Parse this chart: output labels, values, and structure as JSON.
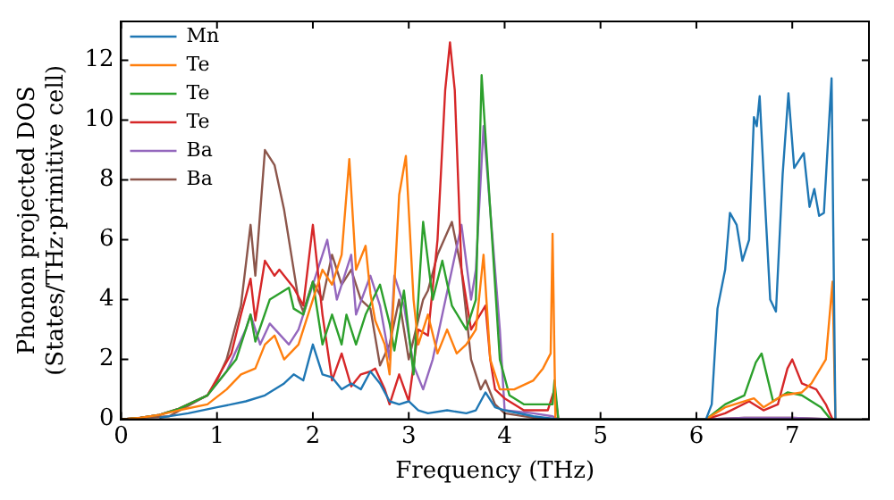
{
  "chart_data": {
    "type": "line",
    "xlabel": "Frequency (THz)",
    "ylabel": "Phonon projected DOS\n(States/THz·primitive cell)",
    "xlim": [
      0,
      7.8
    ],
    "ylim": [
      0,
      13.3
    ],
    "xticks": [
      0,
      1,
      2,
      3,
      4,
      5,
      6,
      7
    ],
    "yticks": [
      0,
      2,
      4,
      6,
      8,
      10,
      12
    ],
    "grid": false,
    "legend": "top left",
    "marker": "none",
    "line_style": "solid",
    "series": [
      {
        "name": "Mn",
        "color": "#1f77b4",
        "x": [
          0.4,
          0.7,
          1.0,
          1.3,
          1.5,
          1.7,
          1.8,
          1.9,
          2.0,
          2.1,
          2.2,
          2.3,
          2.4,
          2.5,
          2.6,
          2.7,
          2.8,
          2.9,
          3.0,
          3.1,
          3.2,
          3.4,
          3.6,
          3.7,
          3.8,
          3.9,
          4.0,
          4.3,
          4.56,
          6.1,
          6.16,
          6.22,
          6.3,
          6.35,
          6.42,
          6.48,
          6.55,
          6.6,
          6.63,
          6.66,
          6.72,
          6.77,
          6.83,
          6.9,
          6.96,
          7.02,
          7.12,
          7.18,
          7.23,
          7.28,
          7.33,
          7.41,
          7.45
        ],
        "values": [
          0.05,
          0.2,
          0.4,
          0.6,
          0.8,
          1.2,
          1.5,
          1.3,
          2.5,
          1.5,
          1.4,
          1.0,
          1.2,
          1.0,
          1.6,
          1.2,
          0.6,
          0.5,
          0.6,
          0.3,
          0.2,
          0.3,
          0.2,
          0.3,
          0.9,
          0.4,
          0.3,
          0.1,
          0,
          0,
          0.5,
          3.7,
          5.0,
          6.9,
          6.5,
          5.3,
          6.0,
          10.1,
          9.8,
          10.8,
          7.0,
          4.0,
          3.6,
          8.2,
          10.9,
          8.4,
          8.9,
          7.1,
          7.7,
          6.8,
          6.9,
          11.4,
          0
        ]
      },
      {
        "name": "Te",
        "color": "#ff7f0e",
        "x": [
          0,
          0.2,
          0.4,
          0.6,
          0.9,
          1.1,
          1.25,
          1.4,
          1.5,
          1.6,
          1.7,
          1.85,
          2.0,
          2.1,
          2.2,
          2.3,
          2.38,
          2.45,
          2.55,
          2.6,
          2.65,
          2.75,
          2.8,
          2.9,
          2.97,
          3.05,
          3.1,
          3.2,
          3.3,
          3.4,
          3.5,
          3.6,
          3.7,
          3.78,
          3.85,
          3.95,
          4.1,
          4.3,
          4.4,
          4.48,
          4.5,
          4.53,
          6.1,
          6.3,
          6.6,
          6.7,
          6.9,
          7.1,
          7.2,
          7.35,
          7.42,
          7.45
        ],
        "values": [
          0,
          0.05,
          0.15,
          0.3,
          0.5,
          1.0,
          1.5,
          1.7,
          2.5,
          2.8,
          2.0,
          2.5,
          4.0,
          5.0,
          4.5,
          5.5,
          8.7,
          5.0,
          5.8,
          4.2,
          3.3,
          2.5,
          1.5,
          7.5,
          8.8,
          4.0,
          2.5,
          3.5,
          2.2,
          3.0,
          2.2,
          2.5,
          3.0,
          5.5,
          2.0,
          1.0,
          1.0,
          1.3,
          1.7,
          2.2,
          6.2,
          0,
          0,
          0.4,
          0.7,
          0.4,
          0.8,
          0.9,
          1.2,
          2.0,
          4.6,
          0
        ]
      },
      {
        "name": "Te",
        "color": "#2ca02c",
        "x": [
          0,
          0.2,
          0.4,
          0.6,
          0.9,
          1.2,
          1.35,
          1.4,
          1.55,
          1.75,
          1.8,
          1.9,
          2.0,
          2.1,
          2.2,
          2.3,
          2.35,
          2.45,
          2.55,
          2.7,
          2.8,
          2.85,
          2.95,
          3.05,
          3.15,
          3.25,
          3.35,
          3.45,
          3.6,
          3.7,
          3.76,
          3.85,
          3.95,
          4.05,
          4.2,
          4.5,
          4.52,
          4.56,
          6.1,
          6.3,
          6.5,
          6.62,
          6.68,
          6.8,
          6.95,
          7.1,
          7.3,
          7.4
        ],
        "values": [
          0,
          0.05,
          0.15,
          0.35,
          0.8,
          2.0,
          3.5,
          2.6,
          4.0,
          4.4,
          3.7,
          3.5,
          4.6,
          2.5,
          3.5,
          2.5,
          3.5,
          2.5,
          3.5,
          4.5,
          3.2,
          2.3,
          4.3,
          1.5,
          6.6,
          4.0,
          5.3,
          3.8,
          3.0,
          4.0,
          11.5,
          7.0,
          2.0,
          0.8,
          0.5,
          0.5,
          1.3,
          0,
          0,
          0.5,
          0.8,
          1.9,
          2.2,
          0.6,
          0.9,
          0.8,
          0.4,
          0
        ]
      },
      {
        "name": "Te",
        "color": "#d62728",
        "x": [
          0,
          0.2,
          0.4,
          0.6,
          0.9,
          1.15,
          1.25,
          1.35,
          1.4,
          1.5,
          1.6,
          1.65,
          1.8,
          1.9,
          2.0,
          2.1,
          2.2,
          2.3,
          2.4,
          2.5,
          2.6,
          2.65,
          2.75,
          2.8,
          2.9,
          3.0,
          3.1,
          3.2,
          3.3,
          3.38,
          3.43,
          3.48,
          3.55,
          3.65,
          3.8,
          3.85,
          3.9,
          4.0,
          4.2,
          4.45,
          4.52,
          4.56,
          6.1,
          6.3,
          6.55,
          6.7,
          6.85,
          6.95,
          7.0,
          7.1,
          7.25,
          7.35,
          7.42
        ],
        "values": [
          0,
          0.05,
          0.15,
          0.35,
          0.8,
          2.2,
          3.5,
          4.7,
          3.3,
          5.3,
          4.8,
          5.0,
          4.4,
          3.8,
          6.5,
          3.5,
          1.3,
          2.2,
          1.1,
          1.5,
          1.6,
          1.7,
          1.0,
          0.5,
          1.5,
          0.6,
          3.0,
          2.8,
          6.0,
          11.0,
          12.6,
          11.0,
          5.0,
          3.0,
          3.8,
          2.0,
          1.0,
          0.7,
          0.3,
          0.3,
          1.0,
          0,
          0,
          0.2,
          0.6,
          0.3,
          0.5,
          1.7,
          2.0,
          1.2,
          1.0,
          0.5,
          0
        ]
      },
      {
        "name": "Ba",
        "color": "#9467bd",
        "x": [
          0,
          0.2,
          0.4,
          0.6,
          0.9,
          1.1,
          1.3,
          1.35,
          1.45,
          1.55,
          1.75,
          1.85,
          2.0,
          2.15,
          2.25,
          2.4,
          2.45,
          2.6,
          2.7,
          2.8,
          2.85,
          2.95,
          3.05,
          3.15,
          3.25,
          3.35,
          3.55,
          3.65,
          3.7,
          3.78,
          3.85,
          3.95,
          4.0,
          4.3,
          4.5,
          4.56,
          6.1,
          6.5,
          7.0,
          7.45
        ],
        "values": [
          0,
          0.05,
          0.15,
          0.35,
          0.8,
          1.6,
          3.0,
          3.5,
          2.5,
          3.2,
          2.5,
          3.0,
          4.5,
          6.0,
          4.0,
          5.5,
          3.5,
          4.8,
          3.8,
          2.0,
          4.8,
          3.8,
          1.8,
          1.0,
          2.0,
          3.5,
          6.5,
          4.0,
          5.0,
          9.8,
          7.0,
          3.0,
          0.3,
          0.2,
          0.1,
          0,
          0,
          0.05,
          0.05,
          0
        ]
      },
      {
        "name": "Ba",
        "color": "#8c564b",
        "x": [
          0,
          0.2,
          0.5,
          0.9,
          1.0,
          1.1,
          1.25,
          1.35,
          1.4,
          1.5,
          1.6,
          1.7,
          1.85,
          1.9,
          2.0,
          2.1,
          2.2,
          2.3,
          2.4,
          2.5,
          2.6,
          2.7,
          2.8,
          2.9,
          3.0,
          3.15,
          3.2,
          3.3,
          3.45,
          3.55,
          3.65,
          3.75,
          3.8,
          3.9,
          4.0,
          4.3,
          4.6,
          6.1,
          6.5,
          7.0,
          7.45
        ],
        "values": [
          0,
          0.05,
          0.1,
          0.8,
          1.3,
          2.0,
          3.8,
          6.5,
          4.8,
          9.0,
          8.5,
          7.0,
          4.0,
          3.6,
          4.6,
          4.0,
          5.5,
          4.5,
          5.0,
          4.0,
          3.7,
          1.8,
          2.5,
          4.0,
          2.0,
          4.0,
          4.3,
          5.5,
          6.6,
          5.0,
          2.0,
          1.0,
          1.3,
          0.5,
          0.2,
          0.05,
          0,
          0,
          0.05,
          0.05,
          0
        ]
      }
    ]
  }
}
